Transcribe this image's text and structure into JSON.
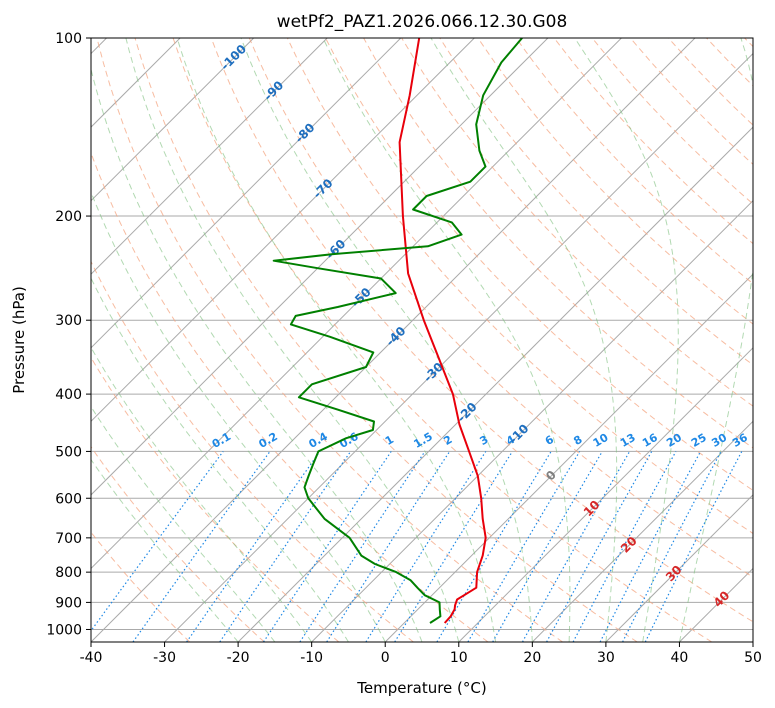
{
  "chart_data": {
    "type": "line",
    "title": "wetPf2_PAZ1.2026.066.12.30.G08",
    "xlabel": "Temperature (°C)",
    "ylabel": "Pressure (hPa)",
    "xlim": [
      -40,
      50
    ],
    "ylim": [
      1050,
      100
    ],
    "x_ticks": [
      "-40",
      "-30",
      "-20",
      "-10",
      "0",
      "10",
      "20",
      "30",
      "40",
      "50"
    ],
    "y_ticks": [
      "100",
      "200",
      "300",
      "400",
      "500",
      "600",
      "700",
      "800",
      "900",
      "1000"
    ],
    "grid": true,
    "colors": {
      "temperature": "#e8000b",
      "dewpoint": "#008000",
      "dry_adiabat": "#f4a582",
      "moist_adiabat": "#7fbf7f",
      "mixing_ratio": "#1e88e5",
      "isotherm_grid": "#aaaaaa",
      "isobar_grid": "#aaaaaa",
      "isotherm_label": "#1f6fbf",
      "warm_label": "#d62728",
      "zero_label": "#808080"
    },
    "series": [
      {
        "name": "Temperature",
        "points": [
          {
            "p": 975,
            "t": 5.5
          },
          {
            "p": 950,
            "t": 5.4
          },
          {
            "p": 925,
            "t": 5.0
          },
          {
            "p": 910,
            "t": 4.5
          },
          {
            "p": 890,
            "t": 4.0
          },
          {
            "p": 870,
            "t": 4.5
          },
          {
            "p": 850,
            "t": 5.0
          },
          {
            "p": 800,
            "t": 3.0
          },
          {
            "p": 750,
            "t": 1.5
          },
          {
            "p": 700,
            "t": -0.5
          },
          {
            "p": 650,
            "t": -3.5
          },
          {
            "p": 600,
            "t": -6.5
          },
          {
            "p": 550,
            "t": -10.0
          },
          {
            "p": 500,
            "t": -14.5
          },
          {
            "p": 450,
            "t": -19.5
          },
          {
            "p": 400,
            "t": -24.5
          },
          {
            "p": 350,
            "t": -31.0
          },
          {
            "p": 300,
            "t": -38.5
          },
          {
            "p": 250,
            "t": -47.0
          },
          {
            "p": 200,
            "t": -55.5
          },
          {
            "p": 150,
            "t": -66.0
          },
          {
            "p": 125,
            "t": -71.0
          },
          {
            "p": 100,
            "t": -77.5
          }
        ]
      },
      {
        "name": "Dewpoint",
        "points": [
          {
            "p": 975,
            "t": 3.5
          },
          {
            "p": 950,
            "t": 4.0
          },
          {
            "p": 925,
            "t": 3.0
          },
          {
            "p": 900,
            "t": 2.0
          },
          {
            "p": 875,
            "t": -1.0
          },
          {
            "p": 850,
            "t": -3.0
          },
          {
            "p": 825,
            "t": -5.0
          },
          {
            "p": 800,
            "t": -8.0
          },
          {
            "p": 775,
            "t": -12.0
          },
          {
            "p": 750,
            "t": -15.0
          },
          {
            "p": 700,
            "t": -19.0
          },
          {
            "p": 650,
            "t": -25.0
          },
          {
            "p": 600,
            "t": -30.0
          },
          {
            "p": 575,
            "t": -32.0
          },
          {
            "p": 550,
            "t": -33.0
          },
          {
            "p": 525,
            "t": -34.0
          },
          {
            "p": 500,
            "t": -35.0
          },
          {
            "p": 475,
            "t": -33.0
          },
          {
            "p": 460,
            "t": -30.5
          },
          {
            "p": 445,
            "t": -31.5
          },
          {
            "p": 425,
            "t": -38.0
          },
          {
            "p": 405,
            "t": -45.0
          },
          {
            "p": 385,
            "t": -45.0
          },
          {
            "p": 360,
            "t": -40.0
          },
          {
            "p": 340,
            "t": -41.0
          },
          {
            "p": 320,
            "t": -49.0
          },
          {
            "p": 305,
            "t": -56.0
          },
          {
            "p": 295,
            "t": -56.5
          },
          {
            "p": 285,
            "t": -52.0
          },
          {
            "p": 270,
            "t": -46.0
          },
          {
            "p": 255,
            "t": -50.0
          },
          {
            "p": 245,
            "t": -60.0
          },
          {
            "p": 238,
            "t": -67.0
          },
          {
            "p": 232,
            "t": -60.0
          },
          {
            "p": 225,
            "t": -48.0
          },
          {
            "p": 215,
            "t": -45.0
          },
          {
            "p": 205,
            "t": -48.0
          },
          {
            "p": 195,
            "t": -55.0
          },
          {
            "p": 185,
            "t": -55.0
          },
          {
            "p": 175,
            "t": -51.0
          },
          {
            "p": 165,
            "t": -51.0
          },
          {
            "p": 155,
            "t": -54.0
          },
          {
            "p": 140,
            "t": -58.0
          },
          {
            "p": 125,
            "t": -61.0
          },
          {
            "p": 110,
            "t": -63.0
          },
          {
            "p": 100,
            "t": -63.5
          }
        ]
      }
    ],
    "isotherm_labels": [
      "-100",
      "-90",
      "-80",
      "-70",
      "-60",
      "-50",
      "-40",
      "-30",
      "-20",
      "-10",
      "0",
      "10",
      "20",
      "30",
      "40"
    ],
    "mixing_ratio_labels": [
      "0.1",
      "0.2",
      "0.4",
      "0.6",
      "1",
      "1.5",
      "2",
      "3",
      "4",
      "6",
      "8",
      "10",
      "13",
      "16",
      "20",
      "25",
      "30",
      "36"
    ]
  }
}
